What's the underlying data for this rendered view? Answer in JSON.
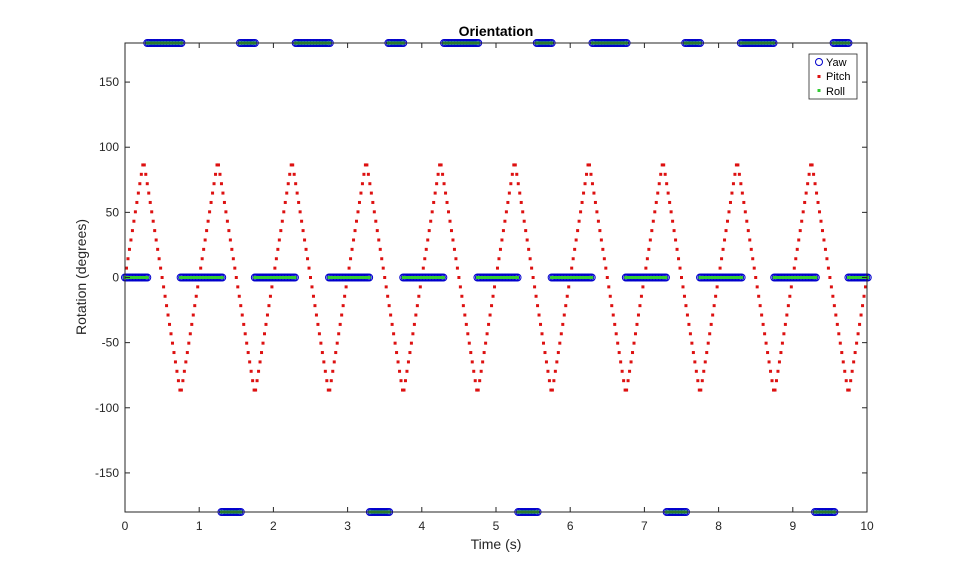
{
  "chart_data": {
    "type": "scatter",
    "title": "Orientation",
    "xlabel": "Time (s)",
    "ylabel": "Rotation (degrees)",
    "xlim": [
      0,
      10
    ],
    "ylim": [
      -180,
      180
    ],
    "xticks": [
      0,
      1,
      2,
      3,
      4,
      5,
      6,
      7,
      8,
      9,
      10
    ],
    "yticks": [
      -150,
      -100,
      -50,
      0,
      50,
      100,
      150
    ],
    "grid": false,
    "legend_position": "top-right",
    "sample_step": 0.02,
    "series": [
      {
        "name": "Yaw",
        "marker": "circle",
        "color": "#0000cc",
        "description": "Yaw is 0 during runs, then wraps to +/-180 between runs",
        "segments": [
          {
            "x0": 0.0,
            "x1": 0.3,
            "y": 0
          },
          {
            "x0": 0.3,
            "x1": 0.75,
            "y": 180
          },
          {
            "x0": 0.75,
            "x1": 1.3,
            "y": 0
          },
          {
            "x0": 1.3,
            "x1": 1.55,
            "y": -180
          },
          {
            "x0": 1.55,
            "x1": 1.75,
            "y": 180
          },
          {
            "x0": 1.75,
            "x1": 2.3,
            "y": 0
          },
          {
            "x0": 2.3,
            "x1": 2.75,
            "y": 180
          },
          {
            "x0": 2.75,
            "x1": 3.3,
            "y": 0
          },
          {
            "x0": 3.3,
            "x1": 3.55,
            "y": -180
          },
          {
            "x0": 3.55,
            "x1": 3.75,
            "y": 180
          },
          {
            "x0": 3.75,
            "x1": 4.3,
            "y": 0
          },
          {
            "x0": 4.3,
            "x1": 4.75,
            "y": 180
          },
          {
            "x0": 4.75,
            "x1": 5.3,
            "y": 0
          },
          {
            "x0": 5.3,
            "x1": 5.55,
            "y": -180
          },
          {
            "x0": 5.55,
            "x1": 5.75,
            "y": 180
          },
          {
            "x0": 5.75,
            "x1": 6.3,
            "y": 0
          },
          {
            "x0": 6.3,
            "x1": 6.75,
            "y": 180
          },
          {
            "x0": 6.75,
            "x1": 7.3,
            "y": 0
          },
          {
            "x0": 7.3,
            "x1": 7.55,
            "y": -180
          },
          {
            "x0": 7.55,
            "x1": 7.75,
            "y": 180
          },
          {
            "x0": 7.75,
            "x1": 8.3,
            "y": 0
          },
          {
            "x0": 8.3,
            "x1": 8.75,
            "y": 180
          },
          {
            "x0": 8.75,
            "x1": 9.3,
            "y": 0
          },
          {
            "x0": 9.3,
            "x1": 9.55,
            "y": -180
          },
          {
            "x0": 9.55,
            "x1": 9.75,
            "y": 180
          },
          {
            "x0": 9.75,
            "x1": 10.0,
            "y": 0
          }
        ]
      },
      {
        "name": "Pitch",
        "marker": "point",
        "color": "#dd1111",
        "description": "Triangle wave between -90 and 90",
        "vertices": [
          [
            0.0,
            0
          ],
          [
            0.25,
            90
          ],
          [
            0.75,
            -90
          ],
          [
            1.25,
            90
          ],
          [
            1.75,
            -90
          ],
          [
            2.25,
            90
          ],
          [
            2.75,
            -90
          ],
          [
            3.25,
            90
          ],
          [
            3.75,
            -90
          ],
          [
            4.25,
            90
          ],
          [
            4.75,
            -90
          ],
          [
            5.25,
            90
          ],
          [
            5.75,
            -90
          ],
          [
            6.25,
            90
          ],
          [
            6.75,
            -90
          ],
          [
            7.25,
            90
          ],
          [
            7.75,
            -90
          ],
          [
            8.25,
            90
          ],
          [
            8.75,
            -90
          ],
          [
            9.25,
            90
          ],
          [
            9.75,
            -90
          ],
          [
            10.0,
            0
          ]
        ]
      },
      {
        "name": "Roll",
        "marker": "point",
        "color": "#33cc33",
        "description": "Same values as Yaw",
        "same_as": "Yaw"
      }
    ]
  }
}
